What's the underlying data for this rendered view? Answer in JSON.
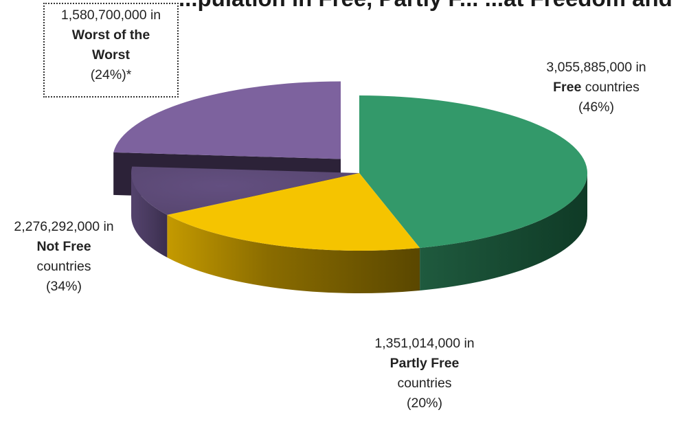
{
  "chart_data": {
    "type": "pie",
    "title": "...pulation in Free, Partly F... ...at Freedom and by",
    "slices": [
      {
        "key": "free",
        "value_text": "3,055,885,000 in",
        "category": "Free",
        "suffix": "countries",
        "percent_text": "(46%)",
        "value": 3055885000,
        "percent": 46,
        "color": "#33996a"
      },
      {
        "key": "partly",
        "value_text": "1,351,014,000 in",
        "category": "Partly Free",
        "suffix": "countries",
        "percent_text": "(20%)",
        "value": 1351014000,
        "percent": 20,
        "color": "#f5c400"
      },
      {
        "key": "notfree",
        "value_text": "2,276,292,000 in",
        "category": "Not Free",
        "suffix": "countries",
        "percent_text": "(34%)",
        "value": 2276292000,
        "percent": 34,
        "color": "#5e4a7a"
      }
    ],
    "subset": {
      "key": "worst",
      "parent": "notfree",
      "value_text": "1,580,700,000 in",
      "category_line1": "Worst of the",
      "category_line2": "Worst",
      "percent_text": "(24%)*",
      "value": 1580700000,
      "percent": 24,
      "color": "#7d629e"
    }
  }
}
